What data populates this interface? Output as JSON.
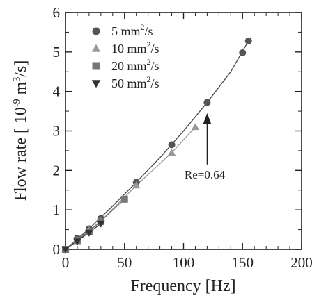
{
  "chart_data": {
    "type": "scatter",
    "xlabel": "Frequency [Hz]",
    "ylabel_main": "Flow rate [ 10",
    "ylabel_exp": "-9",
    "ylabel_unit": " m",
    "ylabel_unit_exp": "3",
    "ylabel_end": "/s]",
    "xlim": [
      0,
      200
    ],
    "ylim": [
      0,
      6
    ],
    "x_ticks": [
      0,
      50,
      100,
      150,
      200
    ],
    "y_ticks": [
      0,
      1,
      2,
      3,
      4,
      5,
      6
    ],
    "grid": false,
    "legend_position": "top-left",
    "series": [
      {
        "name_base": "5 mm",
        "name_sup": "2",
        "name_end": "/s",
        "marker": "circle",
        "color": "#555555",
        "x": [
          0,
          10,
          20,
          30,
          60,
          90,
          120,
          150,
          155
        ],
        "y": [
          0,
          0.28,
          0.52,
          0.78,
          1.7,
          2.65,
          3.72,
          4.98,
          5.28
        ],
        "fit_x": [
          0,
          20,
          40,
          60,
          80,
          100,
          120,
          140,
          155
        ],
        "fit_y": [
          0,
          0.52,
          1.1,
          1.7,
          2.32,
          3.0,
          3.72,
          4.5,
          5.28
        ]
      },
      {
        "name_base": "10 mm",
        "name_sup": "2",
        "name_end": "/s",
        "marker": "triangle-up",
        "color": "#999999",
        "x": [
          0,
          10,
          20,
          30,
          60,
          90,
          110
        ],
        "y": [
          0,
          0.24,
          0.48,
          0.72,
          1.62,
          2.45,
          3.1
        ],
        "fit_x": [
          0,
          30,
          60,
          90,
          110
        ],
        "fit_y": [
          0,
          0.72,
          1.62,
          2.45,
          3.1
        ]
      },
      {
        "name_base": "20 mm",
        "name_sup": "2",
        "name_end": "/s",
        "marker": "square",
        "color": "#777777",
        "x": [
          0,
          10,
          20,
          30,
          50
        ],
        "y": [
          0,
          0.22,
          0.45,
          0.7,
          1.27
        ],
        "fit_x": [
          0,
          25,
          50
        ],
        "fit_y": [
          0,
          0.58,
          1.27
        ]
      },
      {
        "name_base": "50 mm",
        "name_sup": "2",
        "name_end": "/s",
        "marker": "triangle-down",
        "color": "#333333",
        "x": [
          0,
          10,
          20,
          30
        ],
        "y": [
          0,
          0.2,
          0.42,
          0.65
        ],
        "fit_x": [
          0,
          15,
          30
        ],
        "fit_y": [
          0,
          0.32,
          0.65
        ]
      }
    ],
    "annotation": {
      "text": "Re=0.64",
      "arrow_to_x": 120,
      "arrow_to_y": 3.45,
      "arrow_from_y": 2.15,
      "text_x": 118,
      "text_y": 1.9
    }
  }
}
